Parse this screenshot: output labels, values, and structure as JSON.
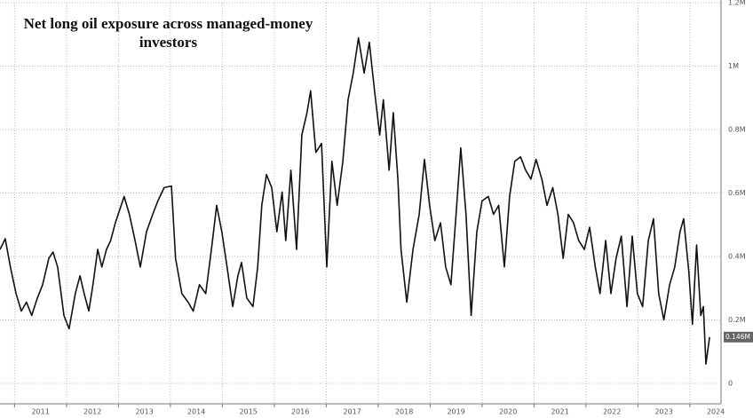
{
  "chart_data": {
    "type": "line",
    "title": "Net long oil exposure across managed-money investors",
    "x": [
      2010.72,
      2010.82,
      2010.92,
      2011.03,
      2011.13,
      2011.23,
      2011.33,
      2011.44,
      2011.54,
      2011.66,
      2011.74,
      2011.83,
      2011.95,
      2012.05,
      2012.17,
      2012.26,
      2012.34,
      2012.43,
      2012.51,
      2012.6,
      2012.68,
      2012.77,
      2012.85,
      2012.94,
      2013.11,
      2013.21,
      2013.32,
      2013.42,
      2013.54,
      2013.66,
      2013.76,
      2013.88,
      2014.02,
      2014.1,
      2014.22,
      2014.34,
      2014.44,
      2014.56,
      2014.68,
      2014.79,
      2014.89,
      2014.99,
      2015.09,
      2015.2,
      2015.3,
      2015.37,
      2015.47,
      2015.59,
      2015.68,
      2015.76,
      2015.85,
      2015.95,
      2016.05,
      2016.15,
      2016.22,
      2016.32,
      2016.43,
      2016.53,
      2016.63,
      2016.7,
      2016.8,
      2016.91,
      2017.01,
      2017.11,
      2017.21,
      2017.32,
      2017.42,
      2017.52,
      2017.62,
      2017.73,
      2017.83,
      2017.93,
      2018.03,
      2018.1,
      2018.21,
      2018.29,
      2018.38,
      2018.44,
      2018.55,
      2018.67,
      2018.79,
      2018.89,
      2018.99,
      2019.09,
      2019.2,
      2019.3,
      2019.4,
      2019.5,
      2019.59,
      2019.69,
      2019.79,
      2019.9,
      2020.0,
      2020.12,
      2020.22,
      2020.32,
      2020.43,
      2020.53,
      2020.63,
      2020.74,
      2020.84,
      2020.94,
      2021.04,
      2021.15,
      2021.25,
      2021.36,
      2021.46,
      2021.56,
      2021.66,
      2021.76,
      2021.86,
      2021.97,
      2022.07,
      2022.18,
      2022.27,
      2022.38,
      2022.48,
      2022.58,
      2022.68,
      2022.79,
      2022.89,
      2022.99,
      2023.09,
      2023.2,
      2023.3,
      2023.4,
      2023.5,
      2023.61,
      2023.71,
      2023.81,
      2023.88,
      2023.98,
      2024.05,
      2024.13,
      2024.21,
      2024.26,
      2024.31,
      2024.38
    ],
    "series": [
      {
        "color": "#111111",
        "values": [
          0.422,
          0.456,
          0.367,
          0.283,
          0.228,
          0.256,
          0.214,
          0.269,
          0.311,
          0.394,
          0.414,
          0.367,
          0.214,
          0.172,
          0.283,
          0.339,
          0.283,
          0.228,
          0.311,
          0.422,
          0.367,
          0.422,
          0.45,
          0.506,
          0.589,
          0.533,
          0.45,
          0.367,
          0.478,
          0.533,
          0.575,
          0.617,
          0.622,
          0.394,
          0.283,
          0.256,
          0.228,
          0.311,
          0.283,
          0.422,
          0.561,
          0.478,
          0.367,
          0.242,
          0.339,
          0.381,
          0.269,
          0.242,
          0.367,
          0.561,
          0.658,
          0.617,
          0.478,
          0.603,
          0.45,
          0.672,
          0.422,
          0.783,
          0.853,
          0.922,
          0.728,
          0.756,
          0.367,
          0.7,
          0.561,
          0.7,
          0.894,
          0.978,
          1.089,
          0.978,
          1.075,
          0.922,
          0.783,
          0.894,
          0.672,
          0.853,
          0.644,
          0.422,
          0.256,
          0.422,
          0.533,
          0.706,
          0.561,
          0.45,
          0.506,
          0.367,
          0.311,
          0.533,
          0.742,
          0.533,
          0.214,
          0.478,
          0.575,
          0.589,
          0.533,
          0.561,
          0.367,
          0.589,
          0.7,
          0.714,
          0.672,
          0.644,
          0.706,
          0.644,
          0.561,
          0.617,
          0.533,
          0.394,
          0.533,
          0.506,
          0.45,
          0.422,
          0.492,
          0.367,
          0.283,
          0.45,
          0.283,
          0.394,
          0.464,
          0.242,
          0.464,
          0.283,
          0.242,
          0.45,
          0.519,
          0.283,
          0.2,
          0.311,
          0.367,
          0.478,
          0.519,
          0.353,
          0.186,
          0.436,
          0.214,
          0.242,
          0.061,
          0.146
        ]
      }
    ],
    "last_value_label": "0.146M",
    "xlim": [
      2010.72,
      2024.6
    ],
    "xticks": [
      2011,
      2012,
      2013,
      2014,
      2015,
      2016,
      2017,
      2018,
      2019,
      2020,
      2021,
      2022,
      2023,
      2024
    ],
    "ylim": [
      0,
      1.2
    ],
    "yticks": [
      0,
      {
        "value": 0.2,
        "label": "0.2M"
      },
      {
        "value": 0.4,
        "label": "0.4M"
      },
      {
        "value": 0.6,
        "label": "0.6M"
      },
      {
        "value": 0.8,
        "label": "0.8M"
      },
      {
        "value": 1,
        "label": "1M"
      },
      {
        "value": 1.2,
        "label": "1.2M"
      }
    ],
    "grid": true
  }
}
